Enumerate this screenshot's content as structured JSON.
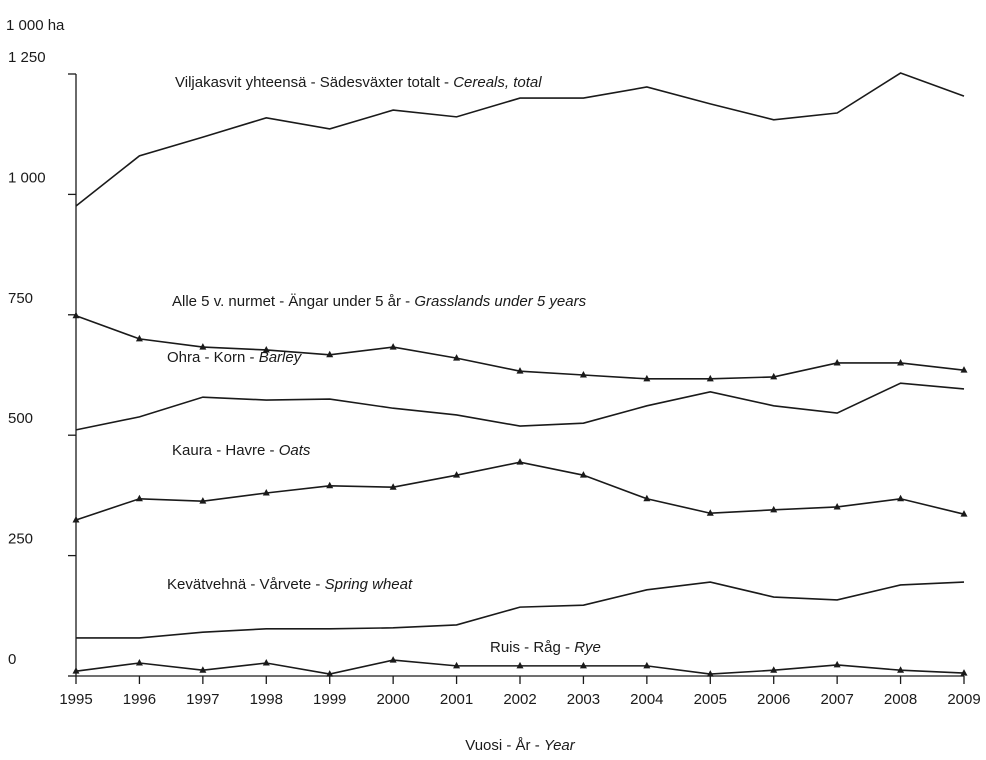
{
  "chart_data": {
    "type": "line",
    "y_unit": "1 000 ha",
    "x_label": "Vuosi - År - ",
    "x_label_en": "Year",
    "x": [
      1995,
      1996,
      1997,
      1998,
      1999,
      2000,
      2001,
      2002,
      2003,
      2004,
      2005,
      2006,
      2007,
      2008,
      2009
    ],
    "xlim": [
      1995,
      2009
    ],
    "xticks": [
      1995,
      1996,
      1997,
      1998,
      1999,
      2000,
      2001,
      2002,
      2003,
      2004,
      2005,
      2006,
      2007,
      2008,
      2009
    ],
    "ylim": [
      0,
      1250
    ],
    "yticks": [
      0,
      250,
      500,
      750,
      {
        "value": 1000,
        "label": "1 000"
      },
      {
        "value": 1250,
        "label": "1 250"
      }
    ],
    "color": "#1a1a1a",
    "series": [
      {
        "name": "Viljakasvit yhteensä - Sädesväxter totalt - ",
        "name_en": "Cereals, total",
        "marker": false,
        "values": [
          976,
          1080,
          1119,
          1159,
          1136,
          1175,
          1161,
          1200,
          1200,
          1223,
          1188,
          1155,
          1169,
          1252,
          1204
        ]
      },
      {
        "name": "Alle 5 v. nurmet - Ängar under 5 år - ",
        "name_en": "Grasslands under 5 years",
        "marker": true,
        "values": [
          748,
          700,
          683,
          677,
          667,
          683,
          660,
          633,
          625,
          617,
          617,
          621,
          650,
          650,
          635
        ]
      },
      {
        "name": "Ohra - Korn - ",
        "name_en": "Barley",
        "marker": false,
        "values": [
          511,
          538,
          579,
          573,
          575,
          556,
          542,
          519,
          525,
          561,
          590,
          561,
          546,
          608,
          596
        ]
      },
      {
        "name": "Kaura - Havre - ",
        "name_en": "Oats",
        "marker": true,
        "values": [
          324,
          368,
          363,
          380,
          395,
          392,
          417,
          444,
          417,
          368,
          338,
          345,
          351,
          368,
          336
        ]
      },
      {
        "name": "Kevätvehnä - Vårvete - ",
        "name_en": "Spring wheat",
        "marker": false,
        "values": [
          79,
          79,
          91,
          98,
          98,
          100,
          106,
          143,
          147,
          179,
          195,
          164,
          158,
          189,
          195
        ]
      },
      {
        "name": "Ruis - Råg - ",
        "name_en": "Rye",
        "marker": true,
        "values": [
          10,
          27,
          12,
          27,
          4,
          33,
          21,
          21,
          21,
          21,
          4,
          12,
          23,
          12,
          6
        ]
      }
    ]
  }
}
